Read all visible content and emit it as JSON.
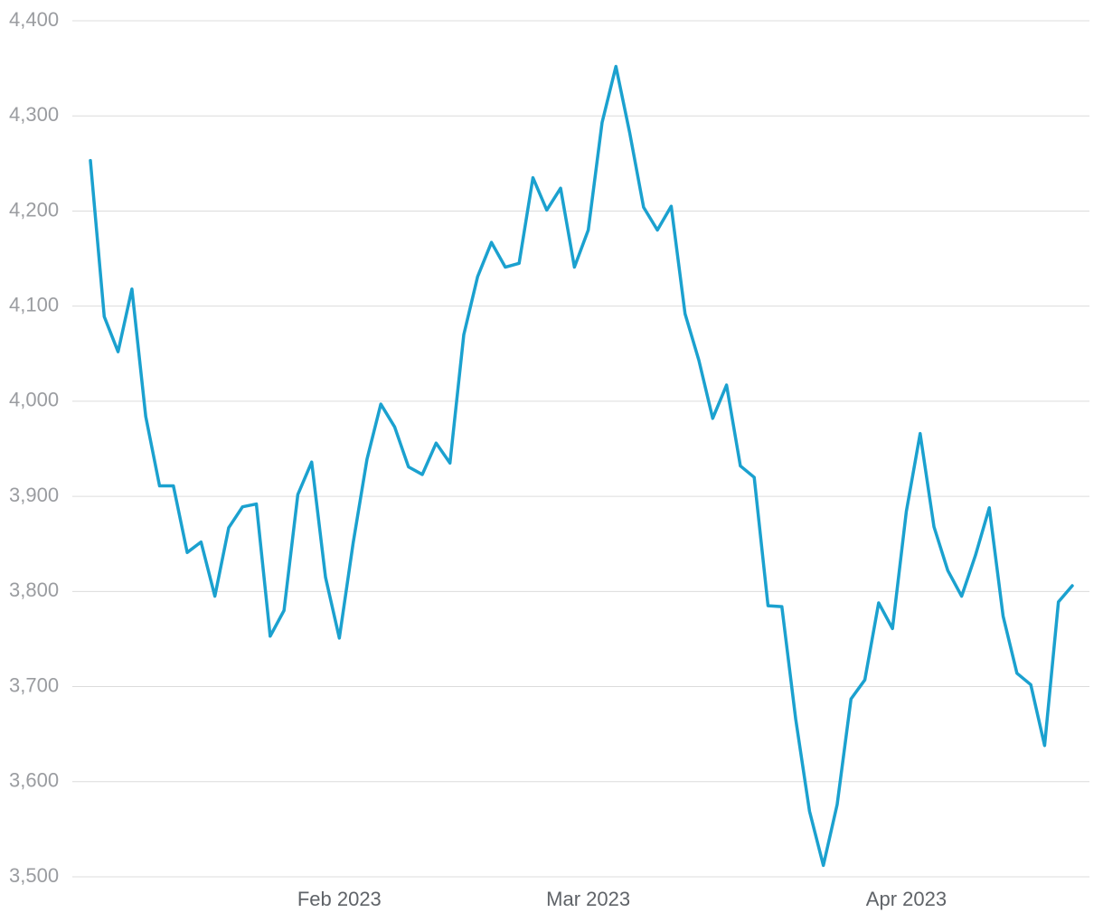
{
  "chart_data": {
    "type": "line",
    "color": "#1ba1cf",
    "grid": true,
    "categories": [
      null,
      null,
      null,
      null,
      null,
      null,
      null,
      null,
      null,
      null,
      null,
      null,
      null,
      null,
      null,
      null,
      null,
      null,
      "Feb 2023",
      null,
      null,
      null,
      null,
      null,
      null,
      null,
      null,
      null,
      null,
      null,
      null,
      null,
      null,
      null,
      null,
      null,
      "Mar 2023",
      null,
      null,
      null,
      null,
      null,
      null,
      null,
      null,
      null,
      null,
      null,
      null,
      null,
      null,
      null,
      null,
      null,
      null,
      null,
      null,
      null,
      null,
      "Apr 2023",
      null,
      null,
      null,
      null,
      null,
      null,
      null,
      null,
      null,
      null,
      null,
      null
    ],
    "values": [
      4253,
      4089,
      4052,
      4118,
      3984,
      3911,
      3911,
      3841,
      3852,
      3795,
      3867,
      3889,
      3892,
      3753,
      3780,
      3902,
      3936,
      3815,
      3751,
      3851,
      3939,
      3997,
      3973,
      3931,
      3923,
      3956,
      3935,
      4070,
      4131,
      4167,
      4141,
      4145,
      4235,
      4201,
      4224,
      4141,
      4180,
      4293,
      4352,
      4282,
      4204,
      4180,
      4205,
      4092,
      4043,
      3982,
      4017,
      3932,
      3920,
      3785,
      3784,
      3666,
      3569,
      3512,
      3576,
      3687,
      3707,
      3788,
      3761,
      3884,
      3966,
      3868,
      3822,
      3795,
      3838,
      3888,
      3774,
      3714,
      3702,
      3638,
      3789,
      3806
    ],
    "ylim": [
      3500,
      4400
    ],
    "yticks": [
      {
        "value": 3500,
        "label": "3,500"
      },
      {
        "value": 3600,
        "label": "3,600"
      },
      {
        "value": 3700,
        "label": "3,700"
      },
      {
        "value": 3800,
        "label": "3,800"
      },
      {
        "value": 3900,
        "label": "3,900"
      },
      {
        "value": 4000,
        "label": "4,000"
      },
      {
        "value": 4100,
        "label": "4,100"
      },
      {
        "value": 4200,
        "label": "4,200"
      },
      {
        "value": 4300,
        "label": "4,300"
      },
      {
        "value": 4400,
        "label": "4,400"
      }
    ]
  }
}
